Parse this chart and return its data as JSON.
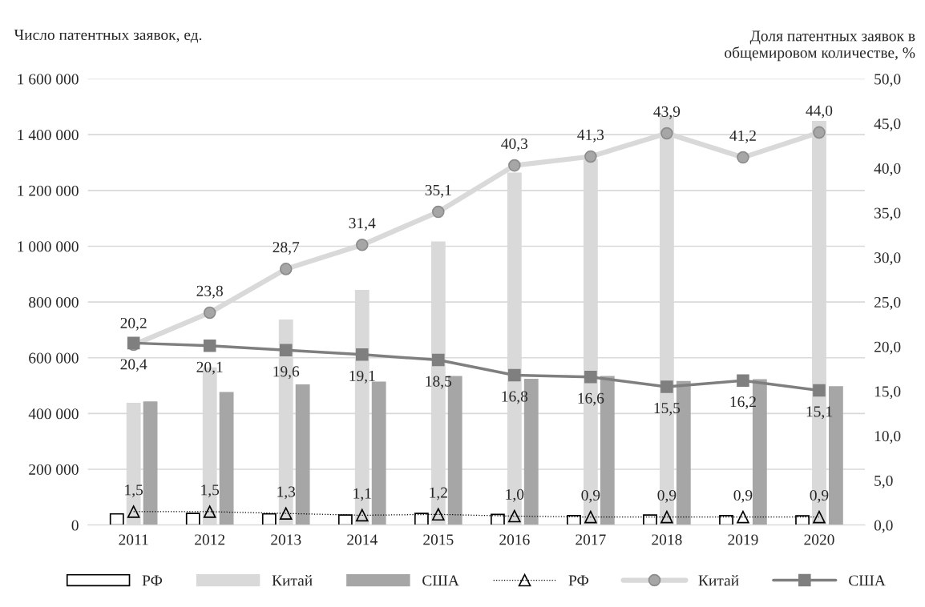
{
  "chart_data": {
    "type": "bar",
    "ylabel": "Число патентных заявок, ед.",
    "y2label": "Доля патентных заявок в\nобщемировом количестве, %",
    "categories": [
      "2011",
      "2012",
      "2013",
      "2014",
      "2015",
      "2016",
      "2017",
      "2018",
      "2019",
      "2020"
    ],
    "series": [
      {
        "name": "РФ",
        "color": "#ffffff",
        "values": [
          40000,
          42000,
          40000,
          36000,
          42000,
          38000,
          34000,
          36000,
          34000,
          33000
        ]
      },
      {
        "name": "Китай",
        "color": "#d9d9d9",
        "values": [
          436000,
          563000,
          735000,
          841000,
          1015000,
          1262000,
          1310000,
          1465000,
          null,
          1447000
        ]
      },
      {
        "name": "США",
        "color": "#a6a6a6",
        "values": [
          441000,
          475000,
          502000,
          512000,
          532000,
          522000,
          532000,
          514000,
          521000,
          496000
        ]
      },
      {
        "name": "РФ",
        "type": "line",
        "axis": "y2",
        "color": "#000000",
        "marker": "triangle",
        "line_style": "dotted",
        "values": [
          1.5,
          1.5,
          1.3,
          1.1,
          1.2,
          1.0,
          0.9,
          0.9,
          0.9,
          0.9
        ],
        "value_labels": [
          "1,5",
          "1,5",
          "1,3",
          "1,1",
          "1,2",
          "1,0",
          "0,9",
          "0,9",
          "0,9",
          "0,9"
        ]
      },
      {
        "name": "Китай",
        "type": "line",
        "axis": "y2",
        "color": "#d9d9d9",
        "marker": "circle",
        "line_style": "solid",
        "values": [
          20.2,
          23.8,
          28.7,
          31.4,
          35.1,
          40.3,
          41.3,
          43.9,
          41.2,
          44.0
        ],
        "value_labels": [
          "20,2",
          "23,8",
          "28,7",
          "31,4",
          "35,1",
          "40,3",
          "41,3",
          "43,9",
          "41,2",
          "44,0"
        ]
      },
      {
        "name": "США",
        "type": "line",
        "axis": "y2",
        "color": "#7f7f7f",
        "marker": "square",
        "line_style": "solid",
        "values": [
          20.4,
          20.1,
          19.6,
          19.1,
          18.5,
          16.8,
          16.6,
          15.5,
          16.2,
          15.1
        ],
        "value_labels": [
          "20,4",
          "20,1",
          "19,6",
          "19,1",
          "18,5",
          "16,8",
          "16,6",
          "15,5",
          "16,2",
          "15,1"
        ]
      }
    ],
    "ylim": [
      0,
      1600000
    ],
    "yticks": [
      {
        "value": 0,
        "label": "0"
      },
      {
        "value": 200000,
        "label": "200 000"
      },
      {
        "value": 400000,
        "label": "400 000"
      },
      {
        "value": 600000,
        "label": "600 000"
      },
      {
        "value": 800000,
        "label": "800 000"
      },
      {
        "value": 1000000,
        "label": "1 000 000"
      },
      {
        "value": 1200000,
        "label": "1 200 000"
      },
      {
        "value": 1400000,
        "label": "1 400 000"
      },
      {
        "value": 1600000,
        "label": "1 600 000"
      }
    ],
    "y2lim": [
      0,
      50
    ],
    "y2ticks": [
      {
        "value": 0,
        "label": "0,0"
      },
      {
        "value": 5,
        "label": "5,0"
      },
      {
        "value": 10,
        "label": "10,0"
      },
      {
        "value": 15,
        "label": "15,0"
      },
      {
        "value": 20,
        "label": "20,0"
      },
      {
        "value": 25,
        "label": "25,0"
      },
      {
        "value": 30,
        "label": "30,0"
      },
      {
        "value": 35,
        "label": "35,0"
      },
      {
        "value": 40,
        "label": "40,0"
      },
      {
        "value": 45,
        "label": "45,0"
      },
      {
        "value": 50,
        "label": "50,0"
      }
    ],
    "grid": "y",
    "legend": "bottom"
  }
}
